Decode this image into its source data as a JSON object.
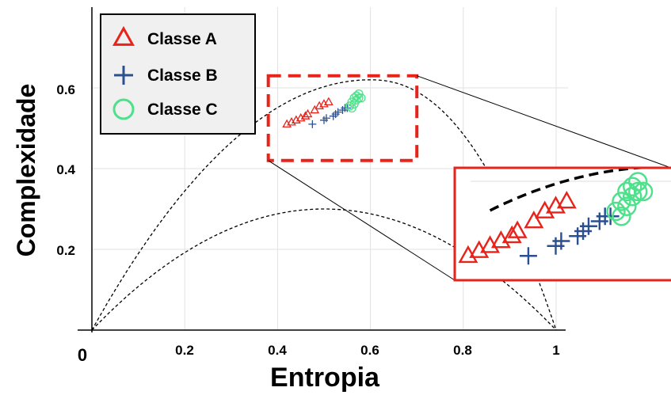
{
  "chart_data": {
    "type": "scatter",
    "title": "",
    "xlabel": "Entropia",
    "ylabel": "Complexidade",
    "xlim": [
      0,
      1
    ],
    "ylim": [
      0,
      0.8
    ],
    "xticks": [
      "0",
      "0.2",
      "0.4",
      "0.6",
      "0.8",
      "1"
    ],
    "yticks": [
      "0.2",
      "0.4",
      "0.6"
    ],
    "grid": true,
    "legend_position": "top-left",
    "series": [
      {
        "name": "Classe A",
        "marker": "triangle",
        "color": "#e8231a",
        "points": [
          [
            0.42,
            0.51
          ],
          [
            0.43,
            0.515
          ],
          [
            0.44,
            0.52
          ],
          [
            0.45,
            0.525
          ],
          [
            0.46,
            0.53
          ],
          [
            0.465,
            0.535
          ],
          [
            0.48,
            0.545
          ],
          [
            0.49,
            0.555
          ],
          [
            0.5,
            0.56
          ],
          [
            0.51,
            0.565
          ]
        ]
      },
      {
        "name": "Classe B",
        "marker": "plus",
        "color": "#2b4f8f",
        "points": [
          [
            0.475,
            0.51
          ],
          [
            0.5,
            0.52
          ],
          [
            0.505,
            0.525
          ],
          [
            0.52,
            0.53
          ],
          [
            0.525,
            0.535
          ],
          [
            0.53,
            0.54
          ],
          [
            0.54,
            0.545
          ],
          [
            0.545,
            0.55
          ],
          [
            0.55,
            0.55
          ]
        ]
      },
      {
        "name": "Classe C",
        "marker": "circle",
        "color": "#4ee08a",
        "points": [
          [
            0.555,
            0.555
          ],
          [
            0.56,
            0.565
          ],
          [
            0.565,
            0.575
          ],
          [
            0.57,
            0.58
          ],
          [
            0.575,
            0.575
          ],
          [
            0.56,
            0.55
          ],
          [
            0.57,
            0.57
          ],
          [
            0.575,
            0.585
          ],
          [
            0.58,
            0.575
          ],
          [
            0.565,
            0.56
          ]
        ]
      }
    ],
    "curves": [
      {
        "type": "upper-bound",
        "style": "dashed"
      },
      {
        "type": "lower-bound",
        "style": "dashed"
      }
    ],
    "zoom_region": {
      "xlim": [
        0.38,
        0.7
      ],
      "ylim": [
        0.42,
        0.63
      ]
    }
  }
}
